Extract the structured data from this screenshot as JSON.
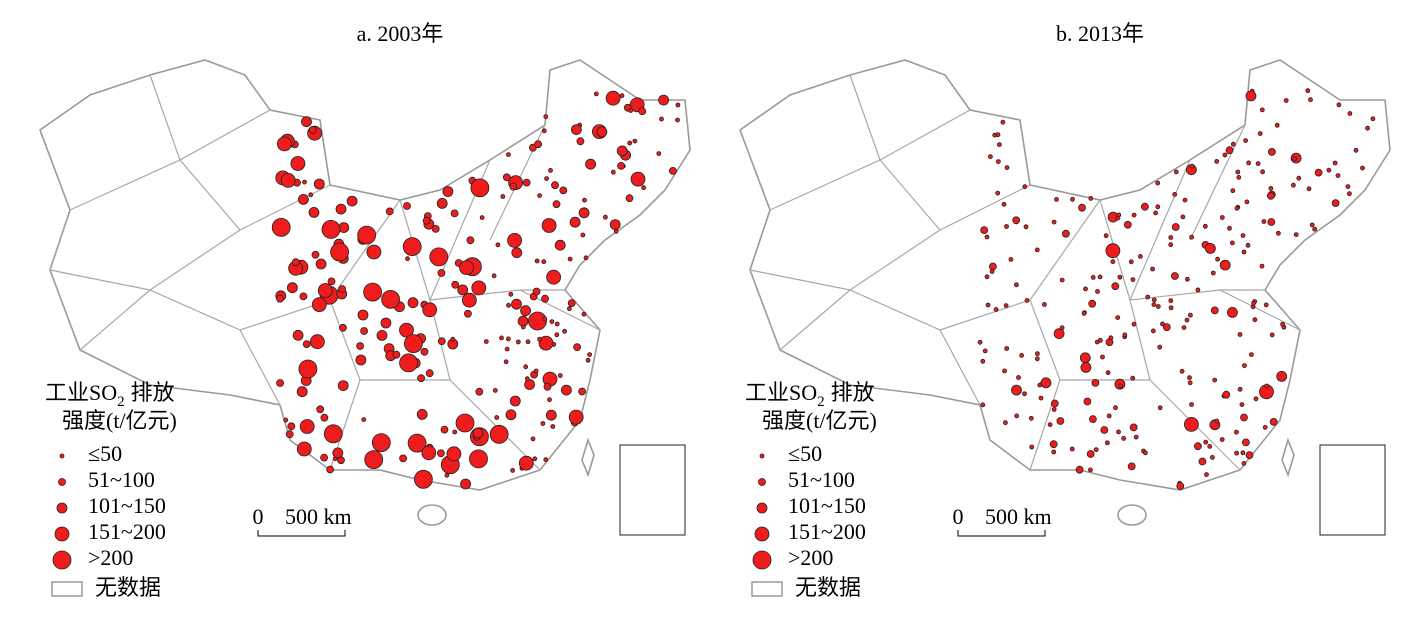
{
  "maps": [
    {
      "title": "a. 2003年",
      "legend": {
        "title_main": "工业SO",
        "title_sub": "2",
        "title_end": "排放",
        "title_line2": "强度(t/亿元)",
        "items": [
          "≤50",
          "51~100",
          "101~150",
          "151~200",
          ">200"
        ],
        "no_data": "无数据"
      },
      "scale": {
        "zero": "0",
        "length": "500 km"
      }
    },
    {
      "title": "b. 2013年",
      "legend": {
        "title_main": "工业SO",
        "title_sub": "2",
        "title_end": "排放",
        "title_line2": "强度(t/亿元)",
        "items": [
          "≤50",
          "51~100",
          "101~150",
          "151~200",
          ">200"
        ],
        "no_data": "无数据"
      },
      "scale": {
        "zero": "0",
        "length": "500 km"
      }
    }
  ]
}
